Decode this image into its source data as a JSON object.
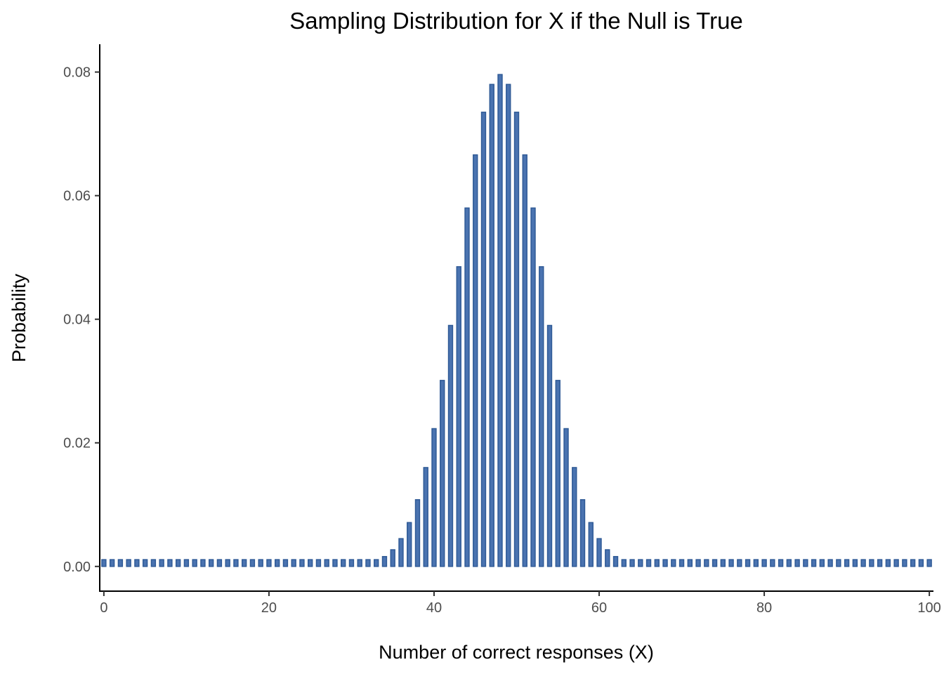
{
  "chart_data": {
    "type": "bar",
    "title": "Sampling Distribution for X if the Null is True",
    "xlabel": "Number of correct responses (X)",
    "ylabel": "Probability",
    "xlim": [
      -0.5,
      100.5
    ],
    "ylim": [
      -0.004,
      0.0845
    ],
    "x_ticks": [
      0,
      20,
      40,
      60,
      80,
      100
    ],
    "x_tick_labels": [
      "0",
      "20",
      "40",
      "60",
      "80",
      "100"
    ],
    "y_ticks": [
      0,
      0.02,
      0.04,
      0.06,
      0.08
    ],
    "y_tick_labels": [
      "0.00",
      "0.02",
      "0.04",
      "0.06",
      "0.08"
    ],
    "bar_width": 0.5,
    "bar_baseline": 0,
    "min_display_height": 0.0011,
    "grid": false,
    "legend": "none",
    "colors": {
      "bar_fill": "#4a73b0",
      "bar_stroke": "#2f5a96"
    },
    "x": [
      0,
      1,
      2,
      3,
      4,
      5,
      6,
      7,
      8,
      9,
      10,
      11,
      12,
      13,
      14,
      15,
      16,
      17,
      18,
      19,
      20,
      21,
      22,
      23,
      24,
      25,
      26,
      27,
      28,
      29,
      30,
      31,
      32,
      33,
      34,
      35,
      36,
      37,
      38,
      39,
      40,
      41,
      42,
      43,
      44,
      45,
      46,
      47,
      48,
      49,
      50,
      51,
      52,
      53,
      54,
      55,
      56,
      57,
      58,
      59,
      60,
      61,
      62,
      63,
      64,
      65,
      66,
      67,
      68,
      69,
      70,
      71,
      72,
      73,
      74,
      75,
      76,
      77,
      78,
      79,
      80,
      81,
      82,
      83,
      84,
      85,
      86,
      87,
      88,
      89,
      90,
      91,
      92,
      93,
      94,
      95,
      96,
      97,
      98,
      99,
      100
    ],
    "values": [
      0,
      0,
      0,
      0,
      0,
      0,
      0,
      0,
      0,
      0,
      0,
      0,
      0,
      0,
      0,
      0,
      0,
      0,
      0,
      0,
      0,
      0,
      0,
      0,
      0,
      0,
      0,
      0,
      0,
      0.0001,
      0.0002,
      0.0003,
      0.0005,
      0.0009,
      0.0016,
      0.0027,
      0.0045,
      0.0071,
      0.0108,
      0.016,
      0.0223,
      0.0301,
      0.039,
      0.0485,
      0.058,
      0.0666,
      0.0735,
      0.078,
      0.0796,
      0.078,
      0.0735,
      0.0666,
      0.058,
      0.0485,
      0.039,
      0.0301,
      0.0223,
      0.016,
      0.0108,
      0.0071,
      0.0045,
      0.0027,
      0.0016,
      0.0009,
      0.0005,
      0.0003,
      0.0002,
      0.0001,
      0,
      0,
      0,
      0,
      0,
      0,
      0,
      0,
      0,
      0,
      0,
      0,
      0,
      0,
      0,
      0,
      0,
      0,
      0,
      0,
      0,
      0,
      0,
      0,
      0,
      0,
      0,
      0,
      0,
      0,
      0,
      0,
      0
    ]
  }
}
